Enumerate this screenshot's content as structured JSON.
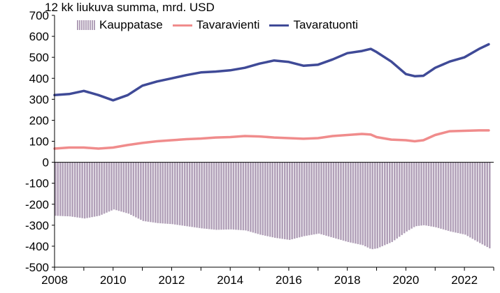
{
  "chart_data": {
    "type": "bar+line",
    "unit_label": "12 kk liukuva summa, mrd. USD",
    "ylim": [
      -500,
      700
    ],
    "yticks": [
      "700",
      "600",
      "500",
      "400",
      "300",
      "200",
      "100",
      "0",
      "-100",
      "-200",
      "-300",
      "-400",
      "-500"
    ],
    "xlim": [
      2008,
      2023
    ],
    "xticks": [
      "2008",
      "2010",
      "2012",
      "2014",
      "2016",
      "2018",
      "2020",
      "2022"
    ],
    "grid": false,
    "legend_position": "top-left",
    "colors": {
      "bars": "#b1a0b8",
      "bar_stripe": "#ffffff",
      "exports": "#f08c8c",
      "imports": "#3f4a97"
    },
    "series": [
      {
        "name": "Kauppatase",
        "kind": "bar",
        "x": [
          2008.0,
          2008.5,
          2009.0,
          2009.5,
          2010.0,
          2010.5,
          2011.0,
          2011.5,
          2012.0,
          2012.5,
          2013.0,
          2013.5,
          2014.0,
          2014.5,
          2015.0,
          2015.5,
          2016.0,
          2016.5,
          2017.0,
          2017.5,
          2018.0,
          2018.5,
          2018.8,
          2019.0,
          2019.5,
          2020.0,
          2020.3,
          2020.6,
          2021.0,
          2021.5,
          2022.0,
          2022.5,
          2022.83
        ],
        "values": [
          -255,
          -258,
          -268,
          -255,
          -225,
          -245,
          -280,
          -290,
          -295,
          -305,
          -315,
          -322,
          -320,
          -325,
          -345,
          -360,
          -370,
          -352,
          -340,
          -360,
          -380,
          -395,
          -415,
          -410,
          -380,
          -330,
          -305,
          -300,
          -310,
          -330,
          -345,
          -385,
          -410
        ]
      },
      {
        "name": "Tavaravienti",
        "kind": "line",
        "x": [
          2008.0,
          2008.5,
          2009.0,
          2009.5,
          2010.0,
          2010.5,
          2011.0,
          2011.5,
          2012.0,
          2012.5,
          2013.0,
          2013.5,
          2014.0,
          2014.5,
          2015.0,
          2015.5,
          2016.0,
          2016.5,
          2017.0,
          2017.5,
          2018.0,
          2018.5,
          2018.8,
          2019.0,
          2019.5,
          2020.0,
          2020.3,
          2020.6,
          2021.0,
          2021.5,
          2022.0,
          2022.5,
          2022.83
        ],
        "values": [
          65,
          70,
          70,
          65,
          70,
          82,
          92,
          100,
          105,
          110,
          113,
          118,
          120,
          125,
          123,
          118,
          115,
          112,
          115,
          125,
          130,
          135,
          132,
          120,
          108,
          105,
          100,
          105,
          130,
          148,
          150,
          152,
          152
        ]
      },
      {
        "name": "Tavaratuonti",
        "kind": "line",
        "x": [
          2008.0,
          2008.5,
          2009.0,
          2009.5,
          2010.0,
          2010.5,
          2011.0,
          2011.5,
          2012.0,
          2012.5,
          2013.0,
          2013.5,
          2014.0,
          2014.5,
          2015.0,
          2015.5,
          2016.0,
          2016.5,
          2017.0,
          2017.5,
          2018.0,
          2018.5,
          2018.8,
          2019.0,
          2019.5,
          2020.0,
          2020.3,
          2020.6,
          2021.0,
          2021.5,
          2022.0,
          2022.5,
          2022.83
        ],
        "values": [
          320,
          325,
          340,
          320,
          295,
          320,
          365,
          385,
          400,
          415,
          428,
          432,
          438,
          450,
          470,
          485,
          478,
          460,
          465,
          490,
          520,
          530,
          540,
          525,
          480,
          420,
          410,
          412,
          450,
          480,
          500,
          540,
          562
        ]
      }
    ]
  }
}
